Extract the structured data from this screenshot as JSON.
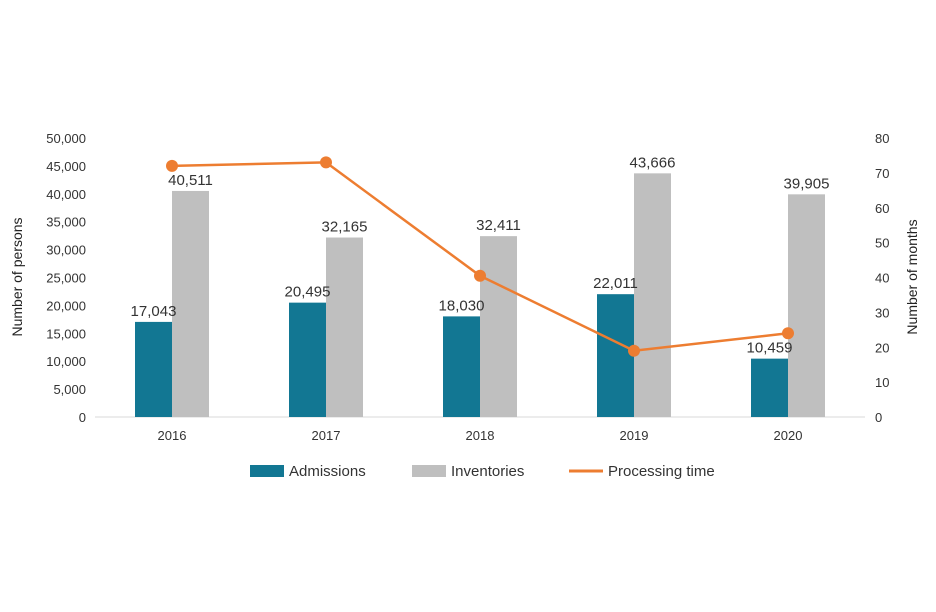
{
  "chart_data": {
    "type": "bar",
    "categories": [
      "2016",
      "2017",
      "2018",
      "2019",
      "2020"
    ],
    "series": [
      {
        "name": "Admissions",
        "type": "bar",
        "axis": "left",
        "color": "#127793",
        "values": [
          17043,
          20495,
          18030,
          22011,
          10459
        ],
        "labels": [
          "17,043",
          "20,495",
          "18,030",
          "22,011",
          "10,459"
        ]
      },
      {
        "name": "Inventories",
        "type": "bar",
        "axis": "left",
        "color": "#bfbfbf",
        "values": [
          40511,
          32165,
          32411,
          43666,
          39905
        ],
        "labels": [
          "40,511",
          "32,165",
          "32,411",
          "43,666",
          "39,905"
        ]
      },
      {
        "name": "Processing time",
        "type": "line",
        "axis": "right",
        "color": "#ed7d31",
        "values": [
          72,
          73,
          40.5,
          19,
          24
        ]
      }
    ],
    "ylabel": "Number of persons",
    "ylabel_right": "Number of months",
    "ylim": [
      0,
      50000
    ],
    "ylim_right": [
      0,
      80
    ],
    "yticks": [
      "0",
      "5,000",
      "10,000",
      "15,000",
      "20,000",
      "25,000",
      "30,000",
      "35,000",
      "40,000",
      "45,000",
      "50,000"
    ],
    "yticks_right": [
      "0",
      "10",
      "20",
      "30",
      "40",
      "50",
      "60",
      "70",
      "80"
    ],
    "grid": false,
    "legend_position": "bottom"
  }
}
